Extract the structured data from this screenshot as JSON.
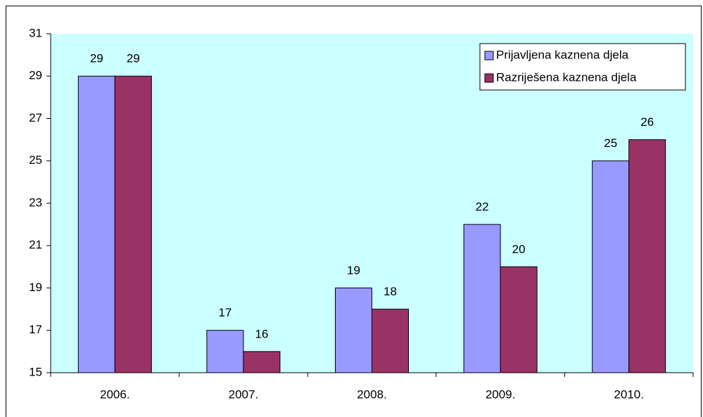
{
  "chart_data": {
    "type": "bar",
    "categories": [
      "2006.",
      "2007.",
      "2008.",
      "2009.",
      "2010."
    ],
    "series": [
      {
        "name": "Prijavljena kaznena djela",
        "color": "#9999ff",
        "values": [
          29,
          17,
          19,
          22,
          25
        ]
      },
      {
        "name": "Razriješena kaznena djela",
        "color": "#993366",
        "values": [
          29,
          16,
          18,
          20,
          26
        ]
      }
    ],
    "ylim": [
      15,
      31
    ],
    "yticks": [
      15,
      17,
      19,
      21,
      23,
      25,
      27,
      29,
      31
    ],
    "grid": false,
    "legend": "upper right",
    "plot_background": "#ccffff"
  }
}
